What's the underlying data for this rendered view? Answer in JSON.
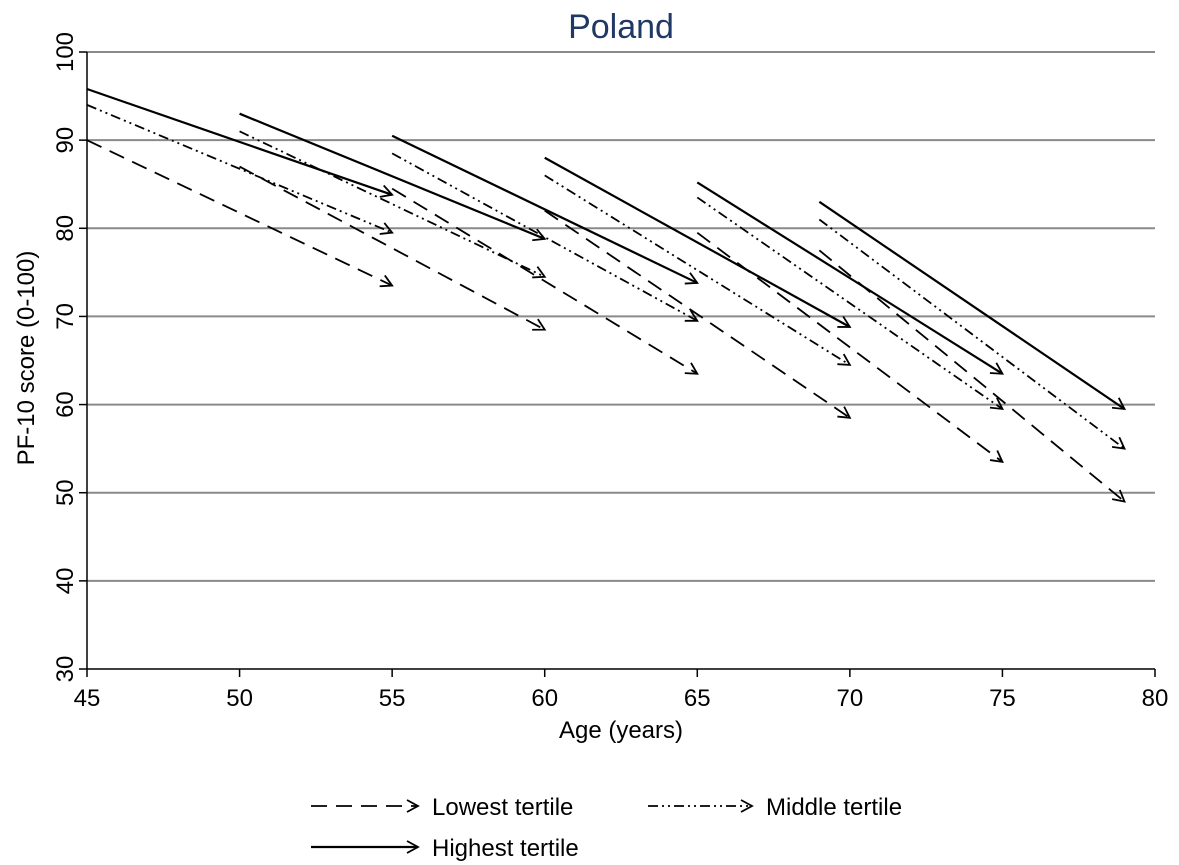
{
  "chart_data": {
    "type": "line",
    "title": "Poland",
    "xlabel": "Age (years)",
    "ylabel": "PF-10 score (0-100)",
    "xlim": [
      45,
      80
    ],
    "ylim": [
      30,
      100
    ],
    "x_ticks": [
      45,
      50,
      55,
      60,
      65,
      70,
      75,
      80
    ],
    "y_ticks": [
      30,
      40,
      50,
      60,
      70,
      80,
      90,
      100
    ],
    "grid": "horizontal",
    "legend_placement": "bottom",
    "series": [
      {
        "name": "Lowest tertile",
        "style": "dashed",
        "arrows": [
          {
            "x": [
              45,
              55
            ],
            "y": [
              90.0,
              73.5
            ]
          },
          {
            "x": [
              50,
              60
            ],
            "y": [
              87.0,
              68.5
            ]
          },
          {
            "x": [
              55,
              65
            ],
            "y": [
              84.5,
              63.5
            ]
          },
          {
            "x": [
              60,
              70
            ],
            "y": [
              82.0,
              58.5
            ]
          },
          {
            "x": [
              65,
              75
            ],
            "y": [
              79.5,
              53.5
            ]
          },
          {
            "x": [
              69,
              79
            ],
            "y": [
              77.5,
              49.0
            ]
          }
        ]
      },
      {
        "name": "Middle tertile",
        "style": "dash-dot",
        "arrows": [
          {
            "x": [
              45,
              55
            ],
            "y": [
              94.0,
              79.5
            ]
          },
          {
            "x": [
              50,
              60
            ],
            "y": [
              91.0,
              74.5
            ]
          },
          {
            "x": [
              55,
              65
            ],
            "y": [
              88.5,
              69.5
            ]
          },
          {
            "x": [
              60,
              70
            ],
            "y": [
              86.0,
              64.5
            ]
          },
          {
            "x": [
              65,
              75
            ],
            "y": [
              83.5,
              59.5
            ]
          },
          {
            "x": [
              69,
              79
            ],
            "y": [
              81.0,
              55.0
            ]
          }
        ]
      },
      {
        "name": "Highest tertile",
        "style": "solid",
        "arrows": [
          {
            "x": [
              45,
              55
            ],
            "y": [
              95.8,
              83.8
            ]
          },
          {
            "x": [
              50,
              60
            ],
            "y": [
              93.0,
              78.8
            ]
          },
          {
            "x": [
              55,
              65
            ],
            "y": [
              90.5,
              73.8
            ]
          },
          {
            "x": [
              60,
              70
            ],
            "y": [
              88.0,
              68.8
            ]
          },
          {
            "x": [
              65,
              75
            ],
            "y": [
              85.2,
              63.5
            ]
          },
          {
            "x": [
              69,
              79
            ],
            "y": [
              83.0,
              59.5
            ]
          }
        ]
      }
    ]
  }
}
